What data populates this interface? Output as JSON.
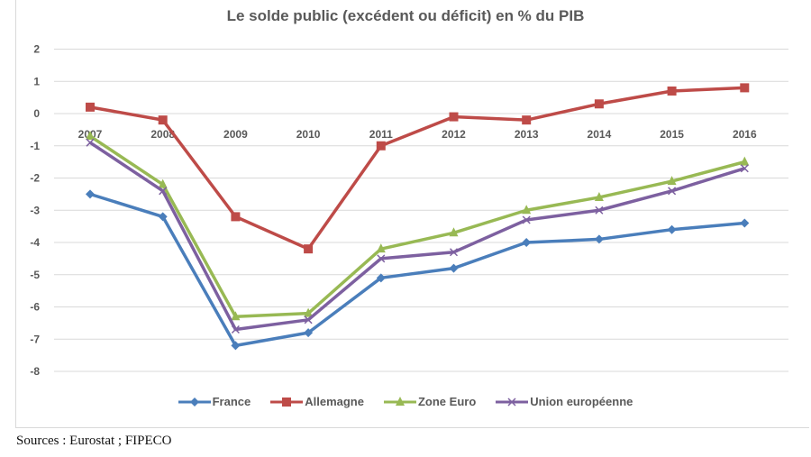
{
  "chart_data": {
    "type": "line",
    "title": "Le solde public (excédent ou déficit) en % du PIB",
    "xlabel": "",
    "ylabel": "",
    "x": [
      "2007",
      "2008",
      "2009",
      "2010",
      "2011",
      "2012",
      "2013",
      "2014",
      "2015",
      "2016"
    ],
    "ylim": [
      -8,
      2
    ],
    "yticks": [
      2,
      1,
      0,
      -1,
      -2,
      -3,
      -4,
      -5,
      -6,
      -7,
      -8
    ],
    "grid": true,
    "legend_position": "bottom",
    "series": [
      {
        "name": "France",
        "color": "#4a7ebb",
        "marker": "diamond",
        "values": [
          -2.5,
          -3.2,
          -7.2,
          -6.8,
          -5.1,
          -4.8,
          -4.0,
          -3.9,
          -3.6,
          -3.4
        ]
      },
      {
        "name": "Allemagne",
        "color": "#be4b48",
        "marker": "square",
        "values": [
          0.2,
          -0.2,
          -3.2,
          -4.2,
          -1.0,
          -0.1,
          -0.2,
          0.3,
          0.7,
          0.8
        ]
      },
      {
        "name": "Zone Euro",
        "color": "#98b954",
        "marker": "triangle",
        "values": [
          -0.7,
          -2.2,
          -6.3,
          -6.2,
          -4.2,
          -3.7,
          -3.0,
          -2.6,
          -2.1,
          -1.5
        ]
      },
      {
        "name": "Union européenne",
        "color": "#7d60a0",
        "marker": "x",
        "values": [
          -0.9,
          -2.4,
          -6.7,
          -6.4,
          -4.5,
          -4.3,
          -3.3,
          -3.0,
          -2.4,
          -1.7
        ]
      }
    ]
  },
  "source": "Sources : Eurostat ; FIPECO"
}
